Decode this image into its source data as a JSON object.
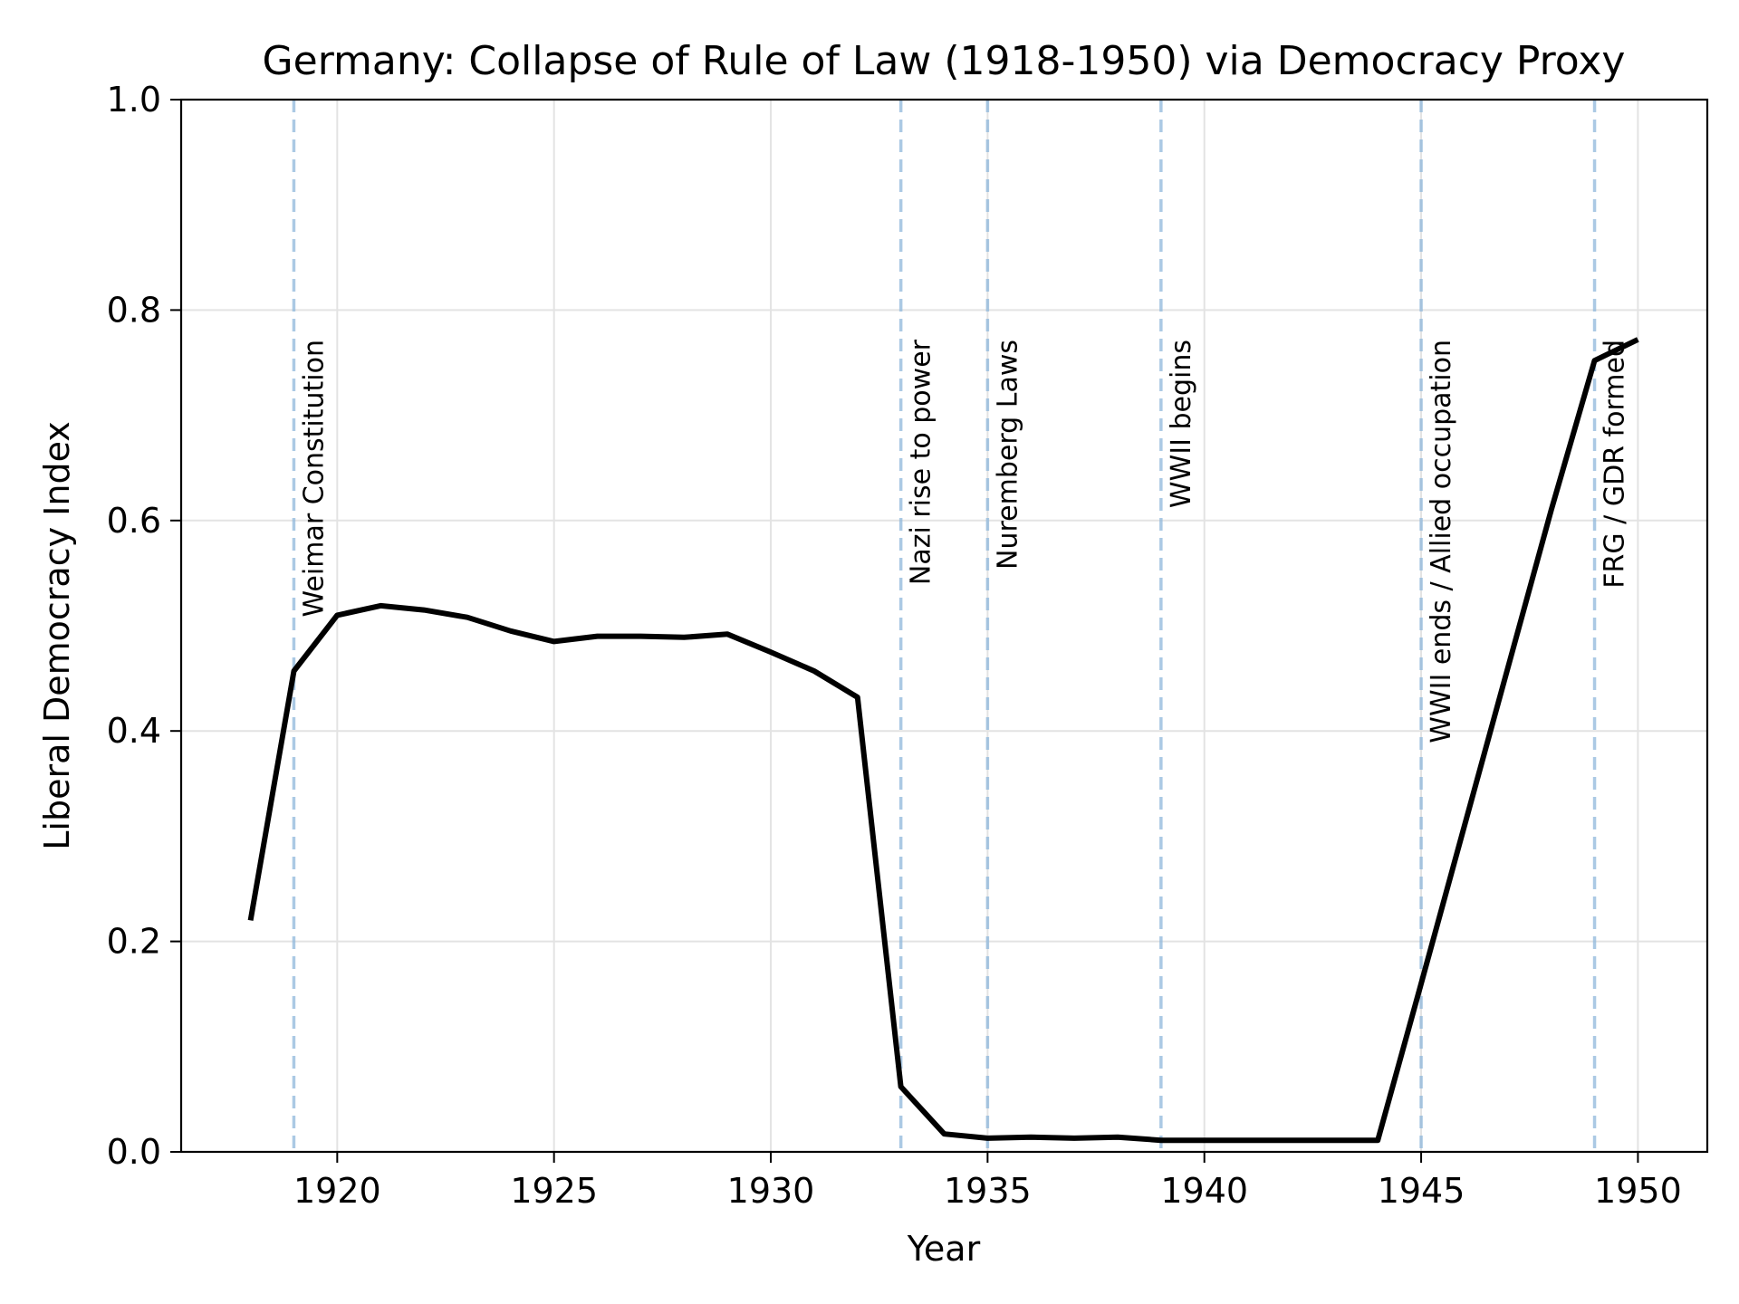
{
  "chart_data": {
    "type": "line",
    "title": "Germany: Collapse of Rule of Law (1918-1950) via Democracy Proxy",
    "xlabel": "Year",
    "ylabel": "Liberal Democracy Index",
    "xlim": [
      1916.4,
      1951.6
    ],
    "ylim": [
      0.0,
      1.0
    ],
    "xticks": [
      1920,
      1925,
      1930,
      1935,
      1940,
      1945,
      1950
    ],
    "xtick_labels": [
      "1920",
      "1925",
      "1930",
      "1935",
      "1940",
      "1945",
      "1950"
    ],
    "yticks": [
      0.0,
      0.2,
      0.4,
      0.6,
      0.8,
      1.0
    ],
    "ytick_labels": [
      "0.0",
      "0.2",
      "0.4",
      "0.6",
      "0.8",
      "1.0"
    ],
    "grid": true,
    "line_color": "#000000",
    "event_line_color": "#8fb8db",
    "grid_color": "#e3e3e3",
    "series": [
      {
        "x": [
          1918,
          1919,
          1920,
          1921,
          1922,
          1923,
          1924,
          1925,
          1926,
          1927,
          1928,
          1929,
          1930,
          1931,
          1932,
          1933,
          1934,
          1935,
          1936,
          1937,
          1938,
          1939,
          1940,
          1941,
          1942,
          1943,
          1944,
          1945,
          1946,
          1947,
          1948,
          1949,
          1950
        ],
        "y": [
          0.22,
          0.457,
          0.51,
          0.519,
          0.515,
          0.508,
          0.495,
          0.485,
          0.49,
          0.49,
          0.489,
          0.492,
          0.475,
          0.457,
          0.432,
          0.062,
          0.017,
          0.013,
          0.014,
          0.013,
          0.014,
          0.011,
          0.011,
          0.011,
          0.011,
          0.011,
          0.011,
          0.16,
          0.31,
          0.46,
          0.61,
          0.752,
          0.772
        ]
      }
    ],
    "events": [
      {
        "x": 1919,
        "label": "Weimar Constitution"
      },
      {
        "x": 1933,
        "label": "Nazi rise to power"
      },
      {
        "x": 1935,
        "label": "Nuremberg Laws"
      },
      {
        "x": 1939,
        "label": "WWII begins"
      },
      {
        "x": 1945,
        "label": "WWII ends / Allied occupation"
      },
      {
        "x": 1949,
        "label": "FRG / GDR formed"
      }
    ]
  }
}
